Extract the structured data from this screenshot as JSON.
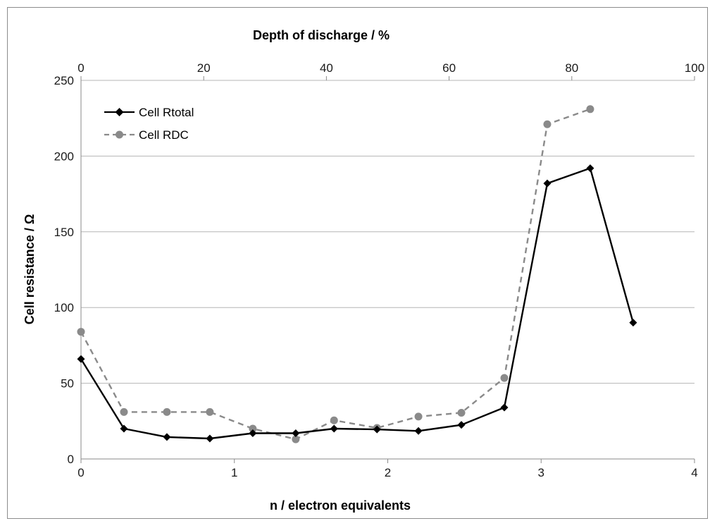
{
  "chart_data": {
    "type": "line",
    "xlabel": "n / electron equivalents",
    "x2label": "Depth of discharge / %",
    "ylabel": "Cell resistance / Ω",
    "xlim": [
      0,
      4
    ],
    "x2lim": [
      0,
      100
    ],
    "ylim": [
      0,
      250
    ],
    "xticks": [
      "0",
      "1",
      "2",
      "3",
      "4"
    ],
    "x2ticks": [
      "0",
      "20",
      "40",
      "60",
      "80",
      "100"
    ],
    "yticks": [
      "0",
      "50",
      "100",
      "150",
      "200",
      "250"
    ],
    "grid": "horizontal",
    "legend_position": "top-left",
    "series": [
      {
        "name": "Cell Rtotal",
        "color": "#000000",
        "marker": "diamond",
        "line": "solid",
        "points": [
          [
            0,
            66
          ],
          [
            0.28,
            20
          ],
          [
            0.56,
            14.5
          ],
          [
            0.84,
            13.5
          ],
          [
            1.12,
            17
          ],
          [
            1.4,
            17
          ],
          [
            1.65,
            20
          ],
          [
            1.93,
            19.5
          ],
          [
            2.2,
            18.5
          ],
          [
            2.48,
            22.5
          ],
          [
            2.76,
            34
          ],
          [
            3.04,
            182
          ],
          [
            3.32,
            192
          ],
          [
            3.6,
            90
          ]
        ]
      },
      {
        "name": "Cell RDC",
        "color": "#8a8a8a",
        "marker": "circle",
        "line": "dashed",
        "points": [
          [
            0,
            84
          ],
          [
            0.28,
            31
          ],
          [
            0.56,
            31
          ],
          [
            0.84,
            31
          ],
          [
            1.12,
            20
          ],
          [
            1.4,
            13
          ],
          [
            1.65,
            25.5
          ],
          [
            1.93,
            20.5
          ],
          [
            2.2,
            28
          ],
          [
            2.48,
            30.5
          ],
          [
            2.76,
            53.5
          ],
          [
            3.04,
            221
          ],
          [
            3.32,
            231
          ]
        ]
      }
    ]
  }
}
